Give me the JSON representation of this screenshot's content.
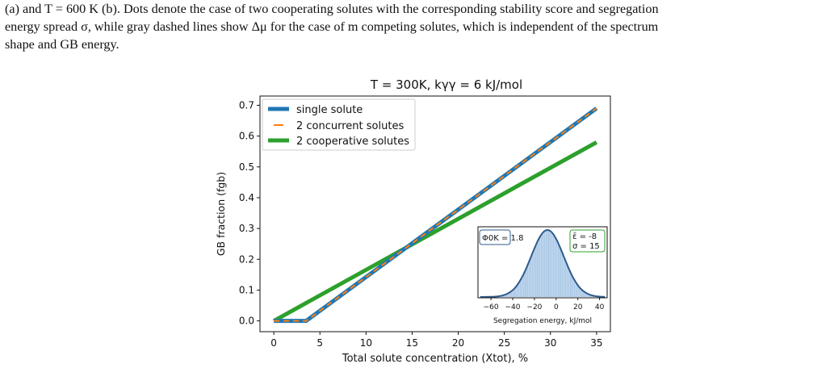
{
  "caption": {
    "line1": "(a) and T = 600 K (b). Dots denote the case of two cooperating solutes with the corresponding stability score and segregation",
    "line2": "energy spread σ, while gray dashed lines show Δμ for the case of m competing solutes, which is independent of the spectrum",
    "line3": "shape and GB energy."
  },
  "chart_data": [
    {
      "type": "line",
      "title": "T = 300K, kγγ = 6 kJ/mol",
      "xlabel": "Total solute concentration (Xtot), %",
      "ylabel": "GB fraction (fgb)",
      "xlim": [
        -1.5,
        36.5
      ],
      "ylim": [
        -0.035,
        0.73
      ],
      "x_ticks": [
        0,
        5,
        10,
        15,
        20,
        25,
        30,
        35
      ],
      "y_ticks": [
        0.0,
        0.1,
        0.2,
        0.3,
        0.4,
        0.5,
        0.6,
        0.7
      ],
      "y_tick_labels": [
        "0.0",
        "0.1",
        "0.2",
        "0.3",
        "0.4",
        "0.5",
        "0.6",
        "0.7"
      ],
      "grid": false,
      "legend_position": "upper-left",
      "series": [
        {
          "name": "single solute",
          "color": "#1f77b4",
          "style": "solid-thick",
          "x": [
            0,
            3.5,
            35
          ],
          "y": [
            0.0,
            0.0,
            0.69
          ]
        },
        {
          "name": "2 concurrent solutes",
          "color": "#ff7f0e",
          "style": "dashed",
          "x": [
            0,
            3.5,
            35
          ],
          "y": [
            0.0,
            0.0,
            0.69
          ]
        },
        {
          "name": "2 cooperative solutes",
          "color": "#2ca02c",
          "style": "solid-thick",
          "x": [
            0,
            35
          ],
          "y": [
            0.0,
            0.58
          ]
        }
      ]
    },
    {
      "type": "area",
      "role": "inset",
      "xlabel": "Segregation energy, kJ/mol",
      "xlim": [
        -72,
        47
      ],
      "x_ticks": [
        -60,
        -40,
        -20,
        0,
        20,
        40
      ],
      "x_tick_labels": [
        "−60",
        "−40",
        "−20",
        "0",
        "20",
        "40"
      ],
      "annotation_left": "Φ0K = 1.8",
      "annotation_right_line1": "ε̄ = -8",
      "annotation_right_line2": "σ = 15",
      "distribution": {
        "mean": -8,
        "std": 15
      },
      "curve_color": "#2f5b8c",
      "fill_color": "#aac8e6"
    }
  ]
}
